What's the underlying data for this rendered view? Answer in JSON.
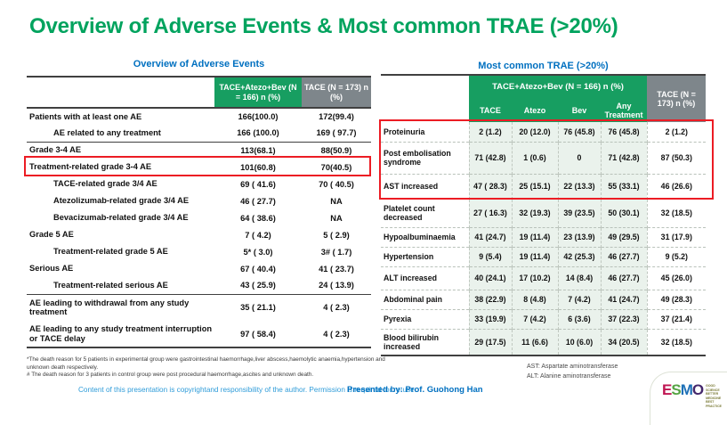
{
  "title": "Overview of Adverse Events & Most common TRAE (>20%)",
  "colors": {
    "title_green": "#00A35E",
    "header_green": "#179E61",
    "header_gray": "#7E868B",
    "highlight_red": "#EC1C24",
    "subtitle_blue": "#0070C0",
    "cell_green": "#EAF2EC"
  },
  "overview_table": {
    "title": "Overview of Adverse Events",
    "columns": [
      "TACE+Atezo+Bev (N = 166) n (%)",
      "TACE (N = 173) n (%)"
    ],
    "rows": [
      {
        "label": "Patients with at least one AE",
        "indent": 0,
        "v1": "166(100.0)",
        "v2": "172(99.4)"
      },
      {
        "label": "AE related to any treatment",
        "indent": 1,
        "v1": "166 (100.0)",
        "v2": "169 ( 97.7)"
      },
      {
        "label": "Grade 3-4 AE",
        "indent": 0,
        "sep": true,
        "v1": "113(68.1)",
        "v2": "88(50.9)"
      },
      {
        "label": "Treatment-related grade 3-4 AE",
        "indent": 0,
        "highlight": true,
        "v1": "101(60.8)",
        "v2": "70(40.5)"
      },
      {
        "label": "TACE-related grade 3/4 AE",
        "indent": 1,
        "v1": "69 ( 41.6)",
        "v2": "70 ( 40.5)"
      },
      {
        "label": "Atezolizumab-related grade 3/4 AE",
        "indent": 1,
        "v1": "46 ( 27.7)",
        "v2": "NA"
      },
      {
        "label": "Bevacizumab-related grade 3/4 AE",
        "indent": 1,
        "v1": "64 ( 38.6)",
        "v2": "NA"
      },
      {
        "label": "Grade 5 AE",
        "indent": 0,
        "v1": "7 ( 4.2)",
        "v2": "5 ( 2.9)"
      },
      {
        "label": "Treatment-related grade 5 AE",
        "indent": 1,
        "v1": "5* ( 3.0)",
        "v2": "3# ( 1.7)"
      },
      {
        "label": "Serious AE",
        "indent": 0,
        "v1": "67 ( 40.4)",
        "v2": "41 ( 23.7)"
      },
      {
        "label": "Treatment-related serious AE",
        "indent": 1,
        "v1": "43 ( 25.9)",
        "v2": "24 ( 13.9)"
      },
      {
        "label": "AE leading to withdrawal from any study treatment",
        "indent": 0,
        "sep": true,
        "tall": true,
        "v1": "35 ( 21.1)",
        "v2": "4 ( 2.3)"
      },
      {
        "label": "AE leading to any study treatment interruption or TACE delay",
        "indent": 0,
        "tall": true,
        "v1": "97 ( 58.4)",
        "v2": "4 ( 2.3)"
      }
    ],
    "footnotes": [
      "*The death reason for 5 patients in experimental group were  gastrointestinal haemorrhage,liver abscess,haemolytic anaemia,hypertension and unknown death respectively.",
      "# The death reason for 3 patients in control group were post procedural haemorrhage,ascites and unknown death."
    ]
  },
  "trae_table": {
    "title": "Most common TRAE (>20%)",
    "group_header": "TACE+Atezo+Bev (N = 166) n (%)",
    "sub_columns": [
      "TACE",
      "Atezo",
      "Bev",
      "Any Treatment"
    ],
    "tace_column": "TACE (N = 173) n (%)",
    "rows": [
      {
        "label": "Proteinuria",
        "values": [
          "2 (1.2)",
          "20 (12.0)",
          "76 (45.8)",
          "76 (45.8)",
          "2 (1.2)"
        ]
      },
      {
        "label": "Post embolisation syndrome",
        "values": [
          "71 (42.8)",
          "1 (0.6)",
          "0",
          "71 (42.8)",
          "87 (50.3)"
        ]
      },
      {
        "label": "AST increased",
        "values": [
          "47 ( 28.3)",
          "25 (15.1)",
          "22 (13.3)",
          "55 (33.1)",
          "46 (26.6)"
        ]
      },
      {
        "label": "Platelet count decreased",
        "values": [
          "27 ( 16.3)",
          "32 (19.3)",
          "39 (23.5)",
          "50 (30.1)",
          "32 (18.5)"
        ]
      },
      {
        "label": "Hypoalbuminaemia",
        "values": [
          "41 (24.7)",
          "19 (11.4)",
          "23 (13.9)",
          "49 (29.5)",
          "31 (17.9)"
        ]
      },
      {
        "label": "Hypertension",
        "values": [
          "9 (5.4)",
          "19 (11.4)",
          "42 (25.3)",
          "46 (27.7)",
          "9 (5.2)"
        ]
      },
      {
        "label": "ALT increased",
        "values": [
          "40 (24.1)",
          "17 (10.2)",
          "14 (8.4)",
          "46 (27.7)",
          "45 (26.0)"
        ]
      },
      {
        "label": "Abdominal pain",
        "values": [
          "38 (22.9)",
          "8 (4.8)",
          "7 (4.2)",
          "41 (24.7)",
          "49 (28.3)"
        ]
      },
      {
        "label": "Pyrexia",
        "values": [
          "33 (19.9)",
          "7 (4.2)",
          "6 (3.6)",
          "37 (22.3)",
          "37 (21.4)"
        ]
      },
      {
        "label": "Blood bilirubin increased",
        "values": [
          "29 (17.5)",
          "11 (6.6)",
          "10 (6.0)",
          "34 (20.5)",
          "32 (18.5)"
        ]
      }
    ],
    "footnotes": [
      "AST: Aspartate aminotransferase",
      "ALT: Alanine aminotransferase"
    ]
  },
  "footer": {
    "copyright": "Content of this presentation is copyrightand responsibility of the author. Permission is required for re-use.",
    "presented_by": "Presented by: Prof. Guohong Han",
    "esmo_letters": [
      "E",
      "S",
      "M",
      "O"
    ],
    "esmo_tagline": [
      "GOOD SCIENCE",
      "BETTER MEDICINE",
      "BEST PRACTICE"
    ]
  }
}
